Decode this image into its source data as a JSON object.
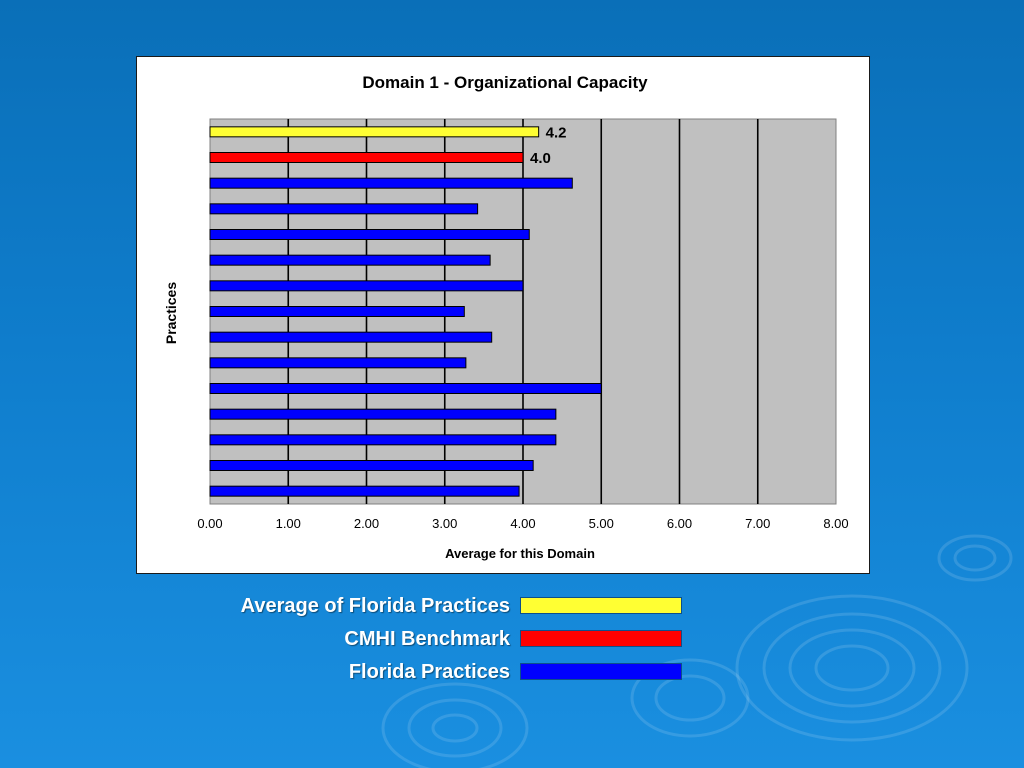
{
  "slide": {
    "legend": [
      {
        "label": "Average of Florida Practices",
        "color": "#ffff33"
      },
      {
        "label": "CMHI Benchmark",
        "color": "#ff0000"
      },
      {
        "label": "Florida Practices",
        "color": "#0000ff"
      }
    ]
  },
  "chart_data": {
    "type": "bar",
    "orientation": "horizontal",
    "title": "Domain 1 - Organizational Capacity",
    "xlabel": "Average for this Domain",
    "ylabel": "Practices",
    "xlim": [
      0,
      8
    ],
    "x_ticks": [
      "0.00",
      "1.00",
      "2.00",
      "3.00",
      "4.00",
      "5.00",
      "6.00",
      "7.00",
      "8.00"
    ],
    "grid": "vertical",
    "plot_background": "#c0c0c0",
    "bars": [
      {
        "value": 4.2,
        "color": "#ffff33",
        "label": "4.2"
      },
      {
        "value": 4.0,
        "color": "#ff0000",
        "label": "4.0"
      },
      {
        "value": 4.63,
        "color": "#0000ff"
      },
      {
        "value": 3.42,
        "color": "#0000ff"
      },
      {
        "value": 4.08,
        "color": "#0000ff"
      },
      {
        "value": 3.58,
        "color": "#0000ff"
      },
      {
        "value": 4.0,
        "color": "#0000ff"
      },
      {
        "value": 3.25,
        "color": "#0000ff"
      },
      {
        "value": 3.6,
        "color": "#0000ff"
      },
      {
        "value": 3.27,
        "color": "#0000ff"
      },
      {
        "value": 5.0,
        "color": "#0000ff"
      },
      {
        "value": 4.42,
        "color": "#0000ff"
      },
      {
        "value": 4.42,
        "color": "#0000ff"
      },
      {
        "value": 4.13,
        "color": "#0000ff"
      },
      {
        "value": 3.95,
        "color": "#0000ff"
      }
    ]
  }
}
